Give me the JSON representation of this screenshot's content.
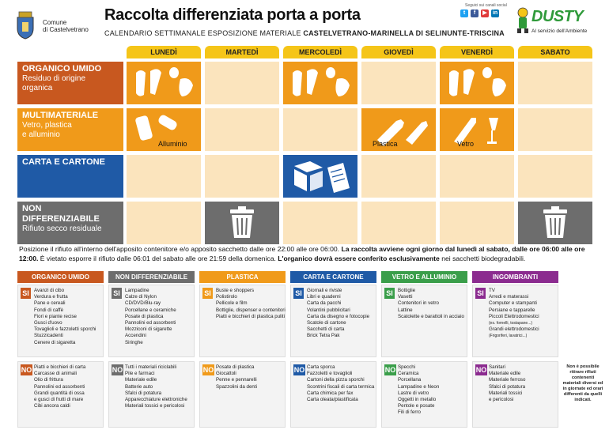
{
  "header": {
    "comune_line1": "Comune",
    "comune_line2": "di Castelvetrano",
    "title": "Raccolta differenziata porta a porta",
    "subtitle_prefix": "CALENDARIO SETTIMANALE ESPOSIZIONE MATERIALE",
    "subtitle_bold": "CASTELVETRANO-MARINELLA DI SELINUNTE-TRISCINA",
    "social_label": "Seguici sui canali social",
    "brand_name": "DUSTY",
    "brand_tagline": "Al servizio dell'Ambiente"
  },
  "days": [
    "LUNEDÌ",
    "MARTEDÌ",
    "MERCOLEDÌ",
    "GIOVEDÌ",
    "VENERDÌ",
    "SABATO"
  ],
  "rows": [
    {
      "title": "ORGANICO UMIDO",
      "desc1": "Residuo di origine",
      "desc2": "organica",
      "color": "#c8581f"
    },
    {
      "title": "MULTIMATERIALE",
      "desc1": "Vetro, plastica",
      "desc2": "e alluminio",
      "color": "#f09a1a"
    },
    {
      "title": "CARTA E CARTONE",
      "desc1": "",
      "desc2": "",
      "color": "#1f5aa6"
    },
    {
      "title": "NON DIFFERENZIABILE",
      "desc1": "Rifiuto secco residuale",
      "desc2": "",
      "color": "#6d6d6d"
    }
  ],
  "schedule_captions": {
    "monday_multi": "Alluminio",
    "thursday_multi": "Plastica",
    "friday_multi": "Vetro"
  },
  "notice": {
    "p1": "Posizione il rifiuto all'interno dell'apposito contenitore e/o apposito sacchetto dalle ore 22:00 alle ore 06:00.",
    "p2": "La raccolta avviene ogni giorno dal lunedì al sabato, dalle ore 06:00 alle ore 12:00.",
    "p3": "È vietato esporre il rifiuto dalle 06:01 del sabato alle ore 21:59 della domenica.",
    "p4": "L'organico dovrà essere conferito esclusivamente",
    "p5": "nei sacchetti biodegradabili."
  },
  "categories": [
    {
      "name": "ORGANICO UMIDO",
      "color": "#c8581f",
      "si": [
        "Avanzi di cibo",
        "Verdura e frutta",
        "Pane e cereali",
        "Fondi di caffè",
        "Fiori e piante recise",
        "Gusci d'uovo",
        "Tovaglioli e fazzoletti sporchi",
        "Stuzzicadenti",
        "Cenere di sigaretta"
      ],
      "no": [
        "Piatti e bicchieri di carta",
        "Carcasse di animali",
        "Olio di frittura",
        "Pannolini ed assorbenti",
        "Grandi quantità di ossa",
        "e gusci di frutti di mare",
        "Cibi ancora caldi"
      ]
    },
    {
      "name": "NON DIFFERENZIABILE",
      "color": "#6d6d6d",
      "si": [
        "Lampadine",
        "Calze di Nylon",
        "CD/DVD/Blu-ray",
        "Porcellane e ceramiche",
        "Posate di plastica",
        "Pannolini ed assorbenti",
        "Mozziconi di sigarette",
        "Accendini",
        "Siringhe"
      ],
      "no": [
        "Tutti i materiali riciclabili",
        "Pile e farmaci",
        "Materiale edile",
        "Batterie auto",
        "Sfalci di potatura",
        "Apparecchiature elettroniche",
        "Materiali tossici e pericolosi"
      ]
    },
    {
      "name": "PLASTICA",
      "color": "#f09a1a",
      "si": [
        "Buste e shoppers",
        "Polistirolo",
        "Pellicole e film",
        "Bottiglie, dispenser e contenitori",
        "Piatti e bicchieri di plastica puliti"
      ],
      "no": [
        "Posate di plastica",
        "Giocattoli",
        "Penne e pennarelli",
        "Spazzolini da denti"
      ]
    },
    {
      "name": "CARTA E CARTONE",
      "color": "#1f5aa6",
      "si": [
        "Giornali e riviste",
        "Libri e quaderni",
        "Carta da pacchi",
        "Volantini pubblicitari",
        "Carta da disegno e fotocopie",
        "Scatole di cartone",
        "Sacchetti di carta",
        "Brick Tetra Pak"
      ],
      "no": [
        "Carta sporca",
        "Fazzoletti e tovaglioli",
        "Cartoni della pizza sporchi",
        "Scontrini fiscali di carta termica",
        "Carta chimica per fax",
        "Carta oleata/plastificata"
      ]
    },
    {
      "name": "VETRO E ALLUMINIO",
      "color": "#3a9e4a",
      "si": [
        "Bottiglie",
        "Vasetti",
        "Contenitori in vetro",
        "Lattine",
        "Scatolette e barattoli in acciaio"
      ],
      "no": [
        "Specchi",
        "Ceramica",
        "Porcellana",
        "Lampadine e Neon",
        "Lastre di vetro",
        "Oggetti in metallo",
        "Pentole e posate",
        "Fili di ferro"
      ]
    },
    {
      "name": "INGOMBRANTI",
      "color": "#8b2b8f",
      "si": [
        "TV",
        "Arredi e materassi",
        "Computer e stampanti",
        "Persiane e tapparelle",
        "Piccoli Elettrodomestici",
        "(es. fornelli, tostapane...)",
        "Grandi elettrodomestici",
        "(Frigoriferi, lavatrici...)"
      ],
      "no": [
        "Sanitari",
        "Materiale edile",
        "Materiale ferroso",
        "Sfalci di potatura",
        "Materiali tossici",
        "e pericolosi"
      ]
    }
  ],
  "side_note": "Non è possibile ritirare rifiuti contenenti materiali diversi ed in giornate ed orari differenti da quelli indicati.",
  "labels": {
    "si": "SI",
    "no": "NO"
  }
}
